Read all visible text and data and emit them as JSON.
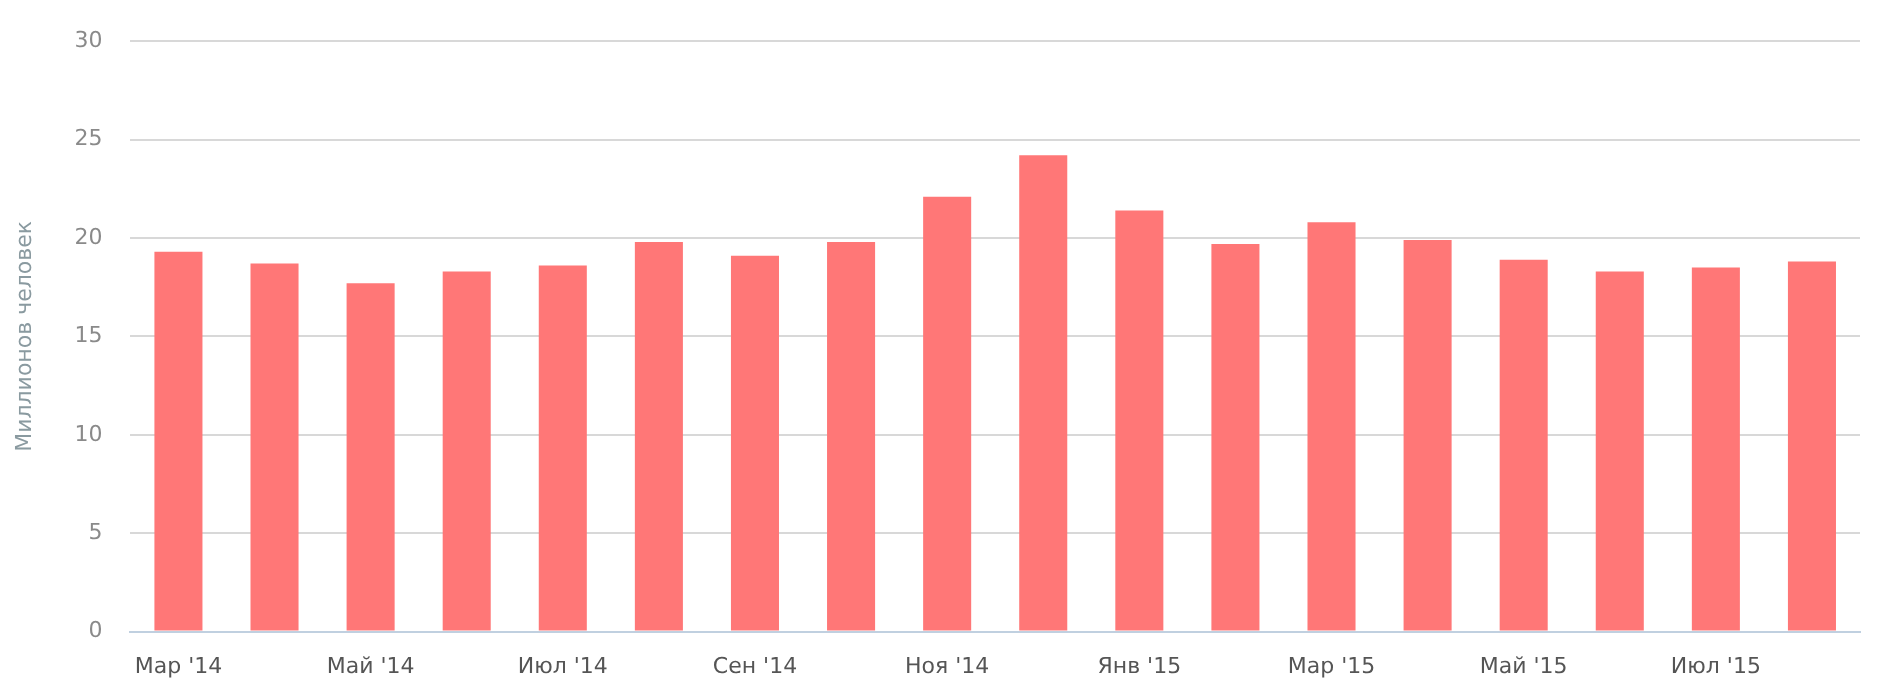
{
  "chart_data": {
    "type": "bar",
    "ylabel": "Миллионов человек",
    "categories": [
      "Мар '14",
      null,
      "Май '14",
      null,
      "Июл '14",
      null,
      "Сен '14",
      null,
      "Ноя '14",
      null,
      "Янв '15",
      null,
      "Мар '15",
      null,
      "Май '15",
      null,
      "Июл '15",
      null
    ],
    "values": [
      19.3,
      18.7,
      17.7,
      18.3,
      18.6,
      19.8,
      19.1,
      19.8,
      22.1,
      24.2,
      21.4,
      19.7,
      20.8,
      19.9,
      18.9,
      18.3,
      18.5,
      18.8
    ],
    "color": "#ff7777",
    "ylim": [
      0,
      30
    ],
    "yticks": [
      0,
      5,
      10,
      15,
      20,
      25,
      30
    ],
    "grid": "y",
    "legend": false
  }
}
